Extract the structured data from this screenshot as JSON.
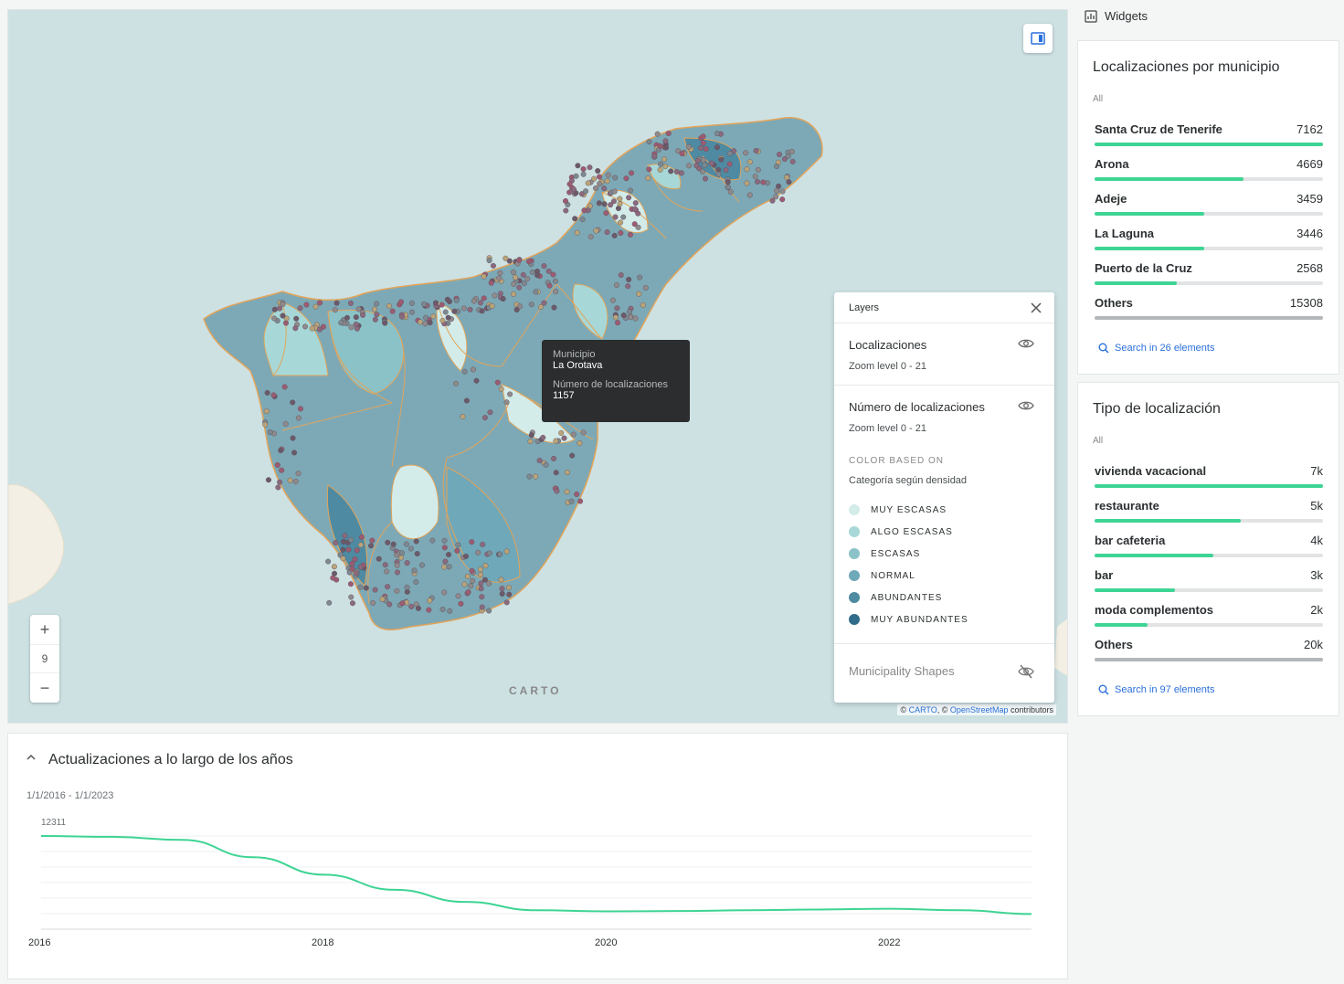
{
  "map": {
    "zoom_in": "+",
    "zoom_level": "9",
    "zoom_out": "−",
    "logo": "CARTO",
    "attribution": {
      "prefix": "© ",
      "carto": "CARTO",
      "middle": ", © ",
      "osm": "OpenStreetMap",
      "suffix": " contributors"
    },
    "tooltip": {
      "label1": "Municipio",
      "value1": "La Orotava",
      "label2": "Número de localizaciones",
      "value2": "1157"
    }
  },
  "layers": {
    "title": "Layers",
    "layer1": {
      "title": "Localizaciones",
      "zoom": "Zoom level 0 - 21"
    },
    "layer2": {
      "title": "Número de localizaciones",
      "zoom": "Zoom level 0 - 21",
      "color_based_on": "COLOR BASED ON",
      "field": "Categoría según densidad",
      "legend": [
        {
          "label": "MUY ESCASAS",
          "color": "#d3ecea"
        },
        {
          "label": "ALGO ESCASAS",
          "color": "#a7d8d7"
        },
        {
          "label": "ESCASAS",
          "color": "#8ac2c7"
        },
        {
          "label": "NORMAL",
          "color": "#6fa8b9"
        },
        {
          "label": "ABUNDANTES",
          "color": "#4e8ba3"
        },
        {
          "label": "MUY ABUNDANTES",
          "color": "#306d8a"
        }
      ]
    },
    "layer3": {
      "title": "Municipality Shapes"
    }
  },
  "timeseries": {
    "title": "Actualizaciones a lo largo de los años",
    "range": "1/1/2016 - 1/1/2023",
    "max_label": "12311",
    "x_ticks": [
      "2016",
      "2018",
      "2020",
      "2022"
    ],
    "color": "#3ed494"
  },
  "chart_data": {
    "type": "line",
    "x": [
      "2016-01",
      "2016-07",
      "2017-01",
      "2017-07",
      "2018-01",
      "2018-07",
      "2019-01",
      "2019-07",
      "2020-01",
      "2020-07",
      "2021-01",
      "2021-07",
      "2022-01",
      "2022-07",
      "2023-01"
    ],
    "values": [
      12311,
      12200,
      11800,
      9500,
      7200,
      5200,
      3600,
      2500,
      2350,
      2400,
      2500,
      2600,
      2700,
      2500,
      2000
    ],
    "xlabel": "",
    "ylabel": "",
    "ylim": [
      0,
      12311
    ]
  },
  "widgets": {
    "header": "Widgets",
    "municipio": {
      "title": "Localizaciones por municipio",
      "filter": "All",
      "rows": [
        {
          "name": "Santa Cruz de Tenerife",
          "value": "7162",
          "pct": 100
        },
        {
          "name": "Arona",
          "value": "4669",
          "pct": 65
        },
        {
          "name": "Adeje",
          "value": "3459",
          "pct": 48
        },
        {
          "name": "La Laguna",
          "value": "3446",
          "pct": 48
        },
        {
          "name": "Puerto de la Cruz",
          "value": "2568",
          "pct": 36
        },
        {
          "name": "Others",
          "value": "15308",
          "pct": 100
        }
      ],
      "search": "Search in 26 elements"
    },
    "tipo": {
      "title": "Tipo de localización",
      "filter": "All",
      "rows": [
        {
          "name": "vivienda vacacional",
          "value": "7k",
          "pct": 100
        },
        {
          "name": "restaurante",
          "value": "5k",
          "pct": 64
        },
        {
          "name": "bar cafeteria",
          "value": "4k",
          "pct": 52
        },
        {
          "name": "bar",
          "value": "3k",
          "pct": 35
        },
        {
          "name": "moda complementos",
          "value": "2k",
          "pct": 23
        },
        {
          "name": "Others",
          "value": "20k",
          "pct": 100
        }
      ],
      "search": "Search in 97 elements"
    }
  }
}
